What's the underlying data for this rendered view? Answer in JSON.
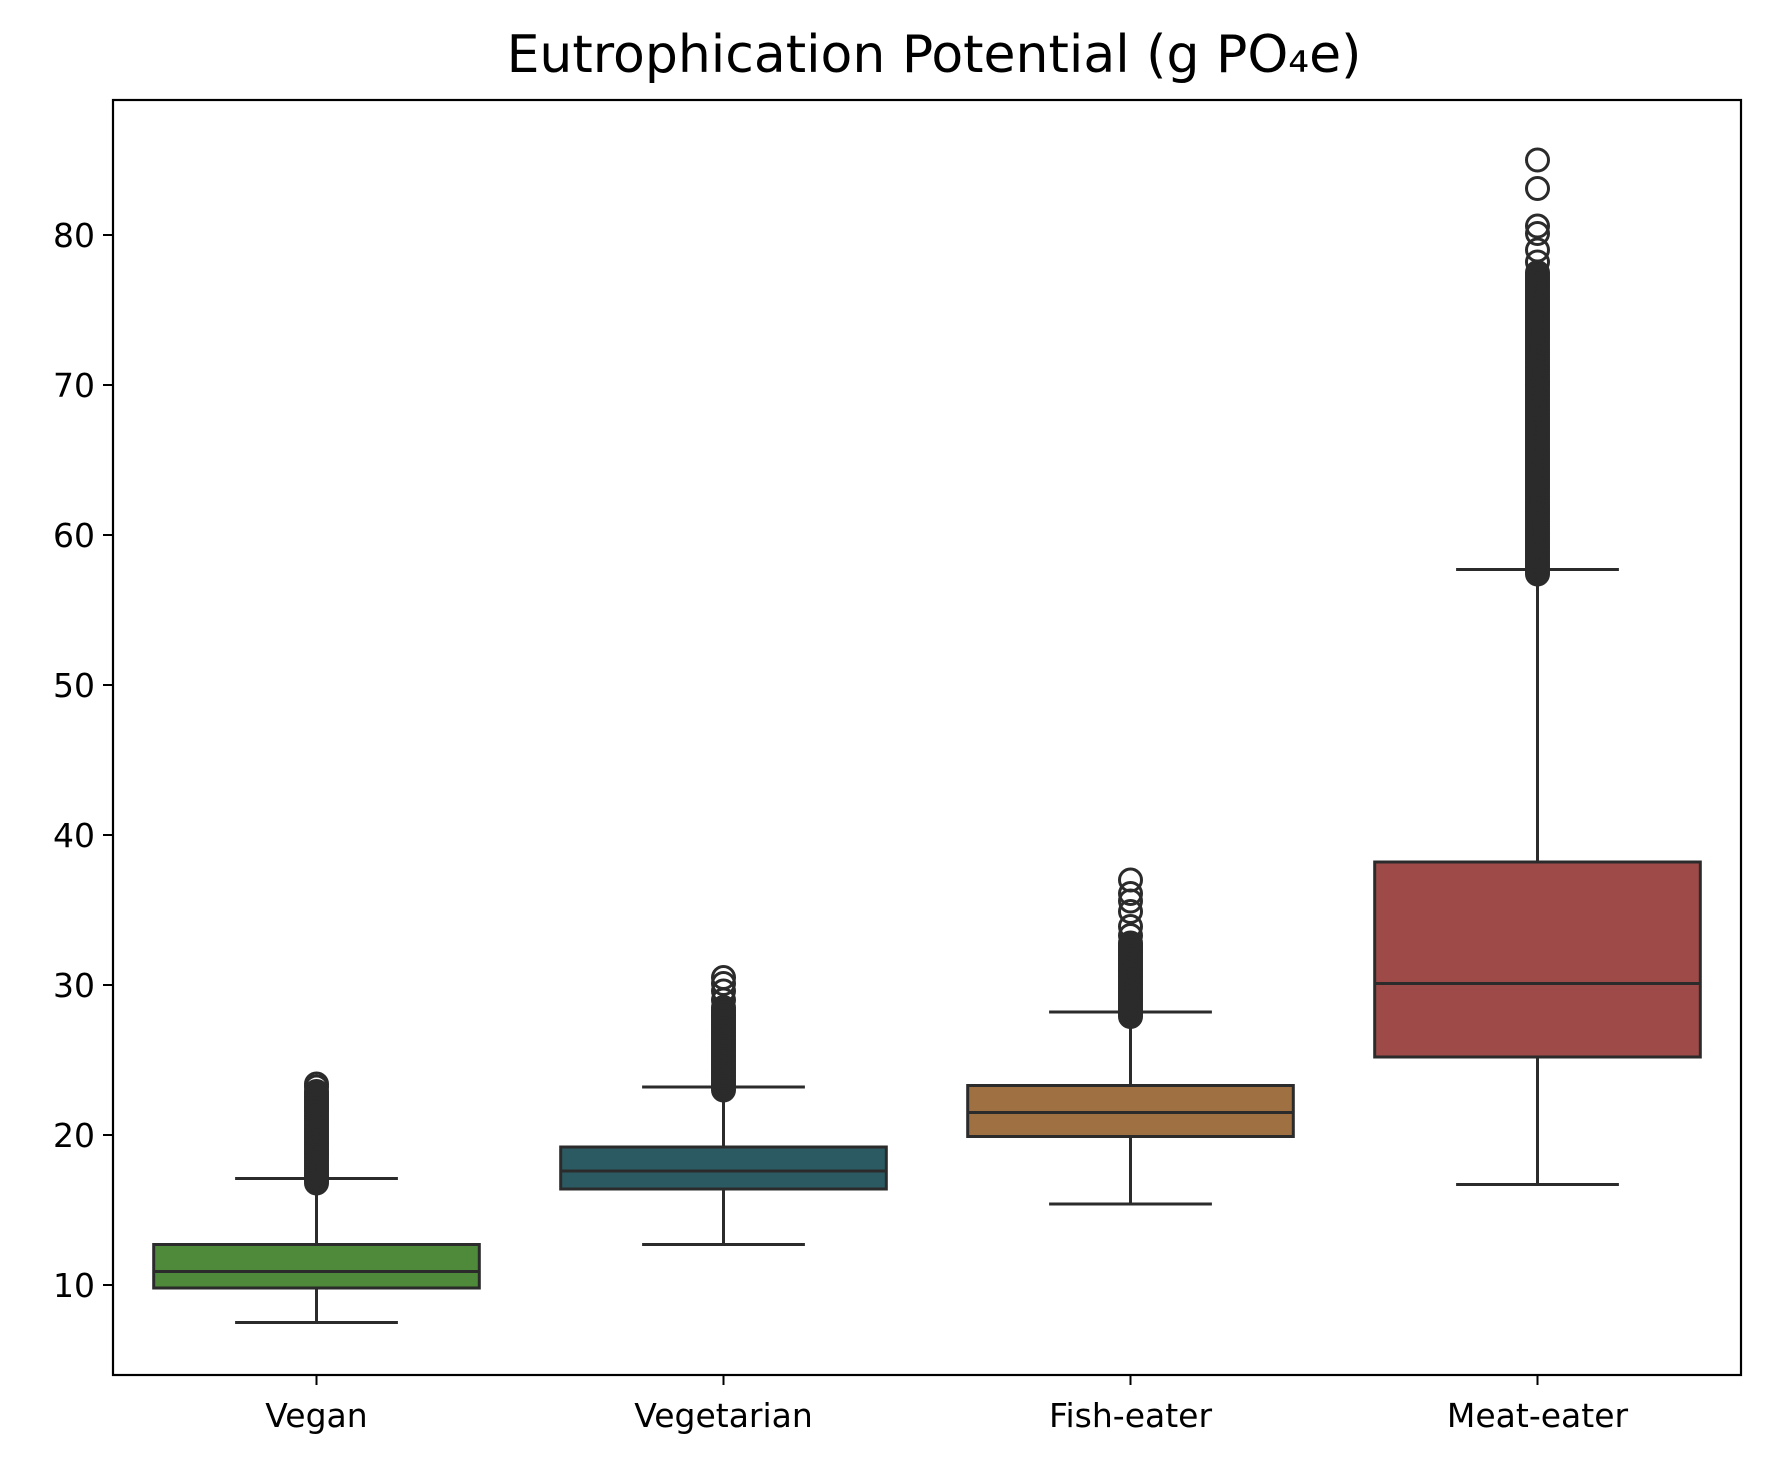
{
  "chart_data": {
    "type": "box",
    "title": "Eutrophication Potential (g PO₄e)",
    "xlabel": "",
    "ylabel": "",
    "ylim": [
      4,
      89
    ],
    "yticks": [
      10,
      20,
      30,
      40,
      50,
      60,
      70,
      80
    ],
    "ytick_labels": [
      "10",
      "20",
      "30",
      "40",
      "50",
      "60",
      "70",
      "80"
    ],
    "grid": false,
    "categories": [
      "Vegan",
      "Vegetarian",
      "Fish-eater",
      "Meat-eater"
    ],
    "boxes": [
      {
        "category": "Vegan",
        "color": "#4e8a3a",
        "whisker_low": 7.5,
        "q1": 9.8,
        "median": 10.9,
        "q3": 12.7,
        "whisker_high": 17.1,
        "fliers_dense_range": [
          16.8,
          22.9
        ],
        "fliers_sparse": [
          23.2,
          23.4
        ]
      },
      {
        "category": "Vegetarian",
        "color": "#2b5a63",
        "whisker_low": 12.7,
        "q1": 16.4,
        "median": 17.6,
        "q3": 19.2,
        "whisker_high": 23.2,
        "fliers_dense_range": [
          23.0,
          28.5
        ],
        "fliers_sparse": [
          29.0,
          29.6,
          30.1,
          30.5
        ]
      },
      {
        "category": "Fish-eater",
        "color": "#9e7042",
        "whisker_low": 15.4,
        "q1": 19.9,
        "median": 21.5,
        "q3": 23.3,
        "whisker_high": 28.2,
        "fliers_dense_range": [
          27.9,
          32.8
        ],
        "fliers_sparse": [
          33.3,
          33.9,
          34.9,
          35.6,
          36.1,
          37.0
        ]
      },
      {
        "category": "Meat-eater",
        "color": "#9e4a49",
        "whisker_low": 16.7,
        "q1": 25.2,
        "median": 30.1,
        "q3": 38.2,
        "whisker_high": 57.7,
        "fliers_dense_range": [
          57.4,
          77.5
        ],
        "fliers_sparse": [
          78.2,
          79.0,
          80.1,
          80.6,
          83.1,
          85.0
        ]
      }
    ]
  }
}
